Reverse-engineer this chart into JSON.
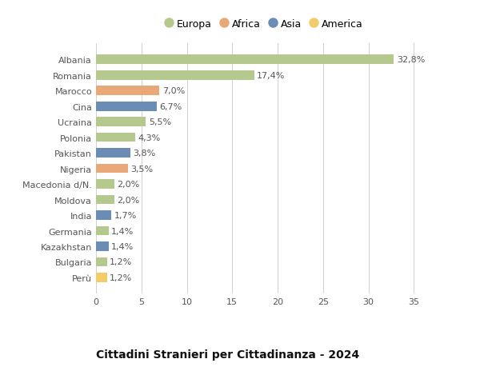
{
  "categories": [
    "Albania",
    "Romania",
    "Marocco",
    "Cina",
    "Ucraina",
    "Polonia",
    "Pakistan",
    "Nigeria",
    "Macedonia d/N.",
    "Moldova",
    "India",
    "Germania",
    "Kazakhstan",
    "Bulgaria",
    "Perù"
  ],
  "values": [
    32.8,
    17.4,
    7.0,
    6.7,
    5.5,
    4.3,
    3.8,
    3.5,
    2.0,
    2.0,
    1.7,
    1.4,
    1.4,
    1.2,
    1.2
  ],
  "labels": [
    "32,8%",
    "17,4%",
    "7,0%",
    "6,7%",
    "5,5%",
    "4,3%",
    "3,8%",
    "3,5%",
    "2,0%",
    "2,0%",
    "1,7%",
    "1,4%",
    "1,4%",
    "1,2%",
    "1,2%"
  ],
  "continents": [
    "Europa",
    "Europa",
    "Africa",
    "Asia",
    "Europa",
    "Europa",
    "Asia",
    "Africa",
    "Europa",
    "Europa",
    "Asia",
    "Europa",
    "Asia",
    "Europa",
    "America"
  ],
  "colors": {
    "Europa": "#b5c98e",
    "Africa": "#e8a878",
    "Asia": "#6b8db5",
    "America": "#f2cc6a"
  },
  "legend_labels": [
    "Europa",
    "Africa",
    "Asia",
    "America"
  ],
  "title": "Cittadini Stranieri per Cittadinanza - 2024",
  "xlim": [
    0,
    37
  ],
  "xticks": [
    0,
    5,
    10,
    15,
    20,
    25,
    30,
    35
  ],
  "background_color": "#ffffff",
  "grid_color": "#d0d0d0",
  "bar_height": 0.6,
  "title_fontsize": 10,
  "subtitle_fontsize": 7.5,
  "label_fontsize": 8,
  "tick_fontsize": 8,
  "legend_fontsize": 9
}
